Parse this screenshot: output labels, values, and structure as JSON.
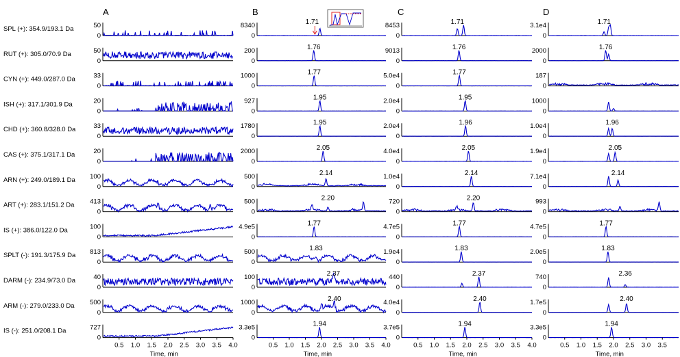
{
  "panels": [
    "A",
    "B",
    "C",
    "D"
  ],
  "xlabel": "Time, min",
  "x_range": [
    0,
    4
  ],
  "x_ticks": [
    "0.5",
    "1.0",
    "1.5",
    "2.0",
    "2.5",
    "3.0",
    "3.5",
    "4.0"
  ],
  "line_color": "#0000cc",
  "analytes": [
    {
      "label": "SPL (+): 354.9/193.1 Da",
      "ymax": [
        "50",
        "8340",
        "8453",
        "3.1e4"
      ],
      "peaks": [
        [],
        [
          {
            "rt": 1.95,
            "h": 0.55
          }
        ],
        [
          {
            "rt": 1.71,
            "h": 0.55
          },
          {
            "rt": 1.9,
            "h": 0.8
          }
        ],
        [
          {
            "rt": 1.71,
            "h": 0.3
          },
          {
            "rt": 1.85,
            "h": 0.6
          },
          {
            "rt": 1.9,
            "h": 0.8
          }
        ]
      ],
      "labels": [
        [],
        [
          {
            "rt": 1.71,
            "text": "1.71",
            "arrow": true
          }
        ],
        [
          {
            "rt": 1.71,
            "text": "1.71"
          }
        ],
        [
          {
            "rt": 1.71,
            "text": "1.71"
          }
        ]
      ],
      "noise": [
        "spike",
        "flat",
        "flat",
        "flat"
      ]
    },
    {
      "label": "RUT (+): 305.0/70.9 Da",
      "ymax": [
        "50",
        "200",
        "9013",
        "2000"
      ],
      "peaks": [
        [],
        [
          {
            "rt": 1.76,
            "h": 0.8
          }
        ],
        [
          {
            "rt": 1.76,
            "h": 0.8
          }
        ],
        [
          {
            "rt": 1.76,
            "h": 0.8
          },
          {
            "rt": 1.85,
            "h": 0.5
          }
        ]
      ],
      "labels": [
        [],
        [
          {
            "rt": 1.76,
            "text": "1.76"
          }
        ],
        [
          {
            "rt": 1.76,
            "text": "1.76"
          }
        ],
        [
          {
            "rt": 1.76,
            "text": "1.76"
          }
        ]
      ],
      "noise": [
        "dense",
        "flat",
        "flat",
        "flat"
      ]
    },
    {
      "label": "CYN (+): 449.0/287.0 Da",
      "ymax": [
        "33",
        "1000",
        "5.0e4",
        "187"
      ],
      "peaks": [
        [],
        [
          {
            "rt": 1.77,
            "h": 0.8
          }
        ],
        [
          {
            "rt": 1.77,
            "h": 0.8
          }
        ],
        []
      ],
      "labels": [
        [],
        [
          {
            "rt": 1.77,
            "text": "1.77"
          }
        ],
        [
          {
            "rt": 1.77,
            "text": "1.77"
          }
        ],
        []
      ],
      "noise": [
        "spike",
        "flat",
        "flat",
        "broad"
      ]
    },
    {
      "label": "ISH (+): 317.1/301.9 Da",
      "ymax": [
        "20",
        "927",
        "2.0e4",
        "1000"
      ],
      "peaks": [
        [],
        [
          {
            "rt": 1.95,
            "h": 0.8
          }
        ],
        [
          {
            "rt": 1.95,
            "h": 0.8
          }
        ],
        [
          {
            "rt": 1.85,
            "h": 0.7
          },
          {
            "rt": 2.0,
            "h": 0.2
          }
        ]
      ],
      "labels": [
        [],
        [
          {
            "rt": 1.95,
            "text": "1.95"
          }
        ],
        [
          {
            "rt": 1.95,
            "text": "1.95"
          }
        ],
        []
      ],
      "noise": [
        "late",
        "flat",
        "flat",
        "flat"
      ]
    },
    {
      "label": "CHD (+): 360.8/328.0 Da",
      "ymax": [
        "33",
        "1780",
        "2.0e4",
        "1.0e4"
      ],
      "peaks": [
        [],
        [
          {
            "rt": 1.95,
            "h": 0.8
          }
        ],
        [
          {
            "rt": 1.96,
            "h": 0.8
          }
        ],
        [
          {
            "rt": 1.85,
            "h": 0.6
          },
          {
            "rt": 1.96,
            "h": 0.6
          }
        ]
      ],
      "labels": [
        [],
        [
          {
            "rt": 1.95,
            "text": "1.95"
          }
        ],
        [
          {
            "rt": 1.96,
            "text": "1.96"
          }
        ],
        [
          {
            "rt": 1.96,
            "text": "1.96"
          }
        ]
      ],
      "noise": [
        "dense",
        "flat",
        "flat",
        "flat"
      ]
    },
    {
      "label": "CAS (+): 375.1/317.1 Da",
      "ymax": [
        "20",
        "2000",
        "4.0e4",
        "1.9e4"
      ],
      "peaks": [
        [],
        [
          {
            "rt": 2.05,
            "h": 0.8
          }
        ],
        [
          {
            "rt": 2.05,
            "h": 0.8
          }
        ],
        [
          {
            "rt": 1.85,
            "h": 0.6
          },
          {
            "rt": 2.05,
            "h": 0.7
          }
        ]
      ],
      "labels": [
        [],
        [
          {
            "rt": 2.05,
            "text": "2.05"
          }
        ],
        [
          {
            "rt": 2.05,
            "text": "2.05"
          }
        ],
        [
          {
            "rt": 2.05,
            "text": "2.05"
          }
        ]
      ],
      "noise": [
        "late",
        "flat",
        "flat",
        "flat"
      ]
    },
    {
      "label": "ARN (+): 249.0/189.1 Da",
      "ymax": [
        "100",
        "500",
        "1.0e4",
        "7.1e4"
      ],
      "peaks": [
        [],
        [
          {
            "rt": 2.14,
            "h": 0.55
          }
        ],
        [
          {
            "rt": 2.14,
            "h": 0.8
          }
        ],
        [
          {
            "rt": 1.85,
            "h": 0.8
          },
          {
            "rt": 2.14,
            "h": 0.5
          }
        ]
      ],
      "labels": [
        [],
        [
          {
            "rt": 2.14,
            "text": "2.14"
          }
        ],
        [
          {
            "rt": 2.14,
            "text": "2.14"
          }
        ],
        [
          {
            "rt": 2.14,
            "text": "2.14"
          }
        ]
      ],
      "noise": [
        "wavy",
        "broad",
        "flat",
        "flat"
      ]
    },
    {
      "label": "ART (+): 283.1/151.2 Da",
      "ymax": [
        "413",
        "500",
        "720",
        "993"
      ],
      "peaks": [
        [
          {
            "rt": 1.7,
            "h": 0.5
          },
          {
            "rt": 3.3,
            "h": 0.5
          }
        ],
        [
          {
            "rt": 1.7,
            "h": 0.45
          },
          {
            "rt": 2.2,
            "h": 0.3
          },
          {
            "rt": 3.3,
            "h": 0.65
          }
        ],
        [
          {
            "rt": 1.7,
            "h": 0.3
          },
          {
            "rt": 2.2,
            "h": 0.65
          }
        ],
        [
          {
            "rt": 2.2,
            "h": 0.35
          },
          {
            "rt": 3.4,
            "h": 0.7
          }
        ]
      ],
      "labels": [
        [],
        [
          {
            "rt": 2.2,
            "text": "2.20"
          }
        ],
        [
          {
            "rt": 2.2,
            "text": "2.20"
          }
        ],
        []
      ],
      "noise": [
        "wavy",
        "broad",
        "broad",
        "broad"
      ]
    },
    {
      "label": "IS (+): 386.0/122.0 Da",
      "ymax": [
        "100",
        "4.9e5",
        "4.7e5",
        "4.7e5"
      ],
      "peaks": [
        [],
        [
          {
            "rt": 1.77,
            "h": 0.8
          }
        ],
        [
          {
            "rt": 1.77,
            "h": 0.8
          }
        ],
        [
          {
            "rt": 1.77,
            "h": 0.8
          }
        ]
      ],
      "labels": [
        [],
        [
          {
            "rt": 1.77,
            "text": "1.77"
          }
        ],
        [
          {
            "rt": 1.77,
            "text": "1.77"
          }
        ],
        [
          {
            "rt": 1.77,
            "text": "1.77"
          }
        ]
      ],
      "noise": [
        "rising",
        "flat",
        "flat",
        "flat"
      ]
    },
    {
      "label": "SPLT (-): 191.3/175.9 Da",
      "ymax": [
        "813",
        "500",
        "1.9e4",
        "2.0e5"
      ],
      "peaks": [
        [],
        [
          {
            "rt": 1.83,
            "h": 0.35
          }
        ],
        [
          {
            "rt": 1.83,
            "h": 0.8
          }
        ],
        [
          {
            "rt": 1.83,
            "h": 0.8
          }
        ]
      ],
      "labels": [
        [],
        [
          {
            "rt": 1.83,
            "text": "1.83"
          }
        ],
        [
          {
            "rt": 1.83,
            "text": "1.83"
          }
        ],
        [
          {
            "rt": 1.83,
            "text": "1.83"
          }
        ]
      ],
      "noise": [
        "wavy",
        "wavy",
        "flat",
        "flat"
      ]
    },
    {
      "label": "DARM (-): 234.9/73.0 Da",
      "ymax": [
        "40",
        "100",
        "440",
        "740"
      ],
      "peaks": [
        [],
        [
          {
            "rt": 2.37,
            "h": 0.75
          }
        ],
        [
          {
            "rt": 1.85,
            "h": 0.3
          },
          {
            "rt": 2.37,
            "h": 0.8
          }
        ],
        [
          {
            "rt": 1.85,
            "h": 0.75
          },
          {
            "rt": 2.36,
            "h": 0.2
          }
        ]
      ],
      "labels": [
        [],
        [
          {
            "rt": 2.37,
            "text": "2.37"
          }
        ],
        [
          {
            "rt": 2.37,
            "text": "2.37"
          }
        ],
        [
          {
            "rt": 2.36,
            "text": "2.36"
          }
        ]
      ],
      "noise": [
        "dense",
        "dense",
        "flat",
        "flat"
      ]
    },
    {
      "label": "ARM (-): 279.0/233.0 Da",
      "ymax": [
        "500",
        "1000",
        "4.0e4",
        "1.7e5"
      ],
      "peaks": [
        [],
        [
          {
            "rt": 2.0,
            "h": 0.45
          },
          {
            "rt": 2.4,
            "h": 0.5
          }
        ],
        [
          {
            "rt": 2.4,
            "h": 0.8
          }
        ],
        [
          {
            "rt": 1.85,
            "h": 0.6
          },
          {
            "rt": 2.4,
            "h": 0.7
          }
        ]
      ],
      "labels": [
        [],
        [
          {
            "rt": 2.4,
            "text": "2.40"
          }
        ],
        [
          {
            "rt": 2.4,
            "text": "2.40"
          }
        ],
        [
          {
            "rt": 2.4,
            "text": "2.40"
          }
        ]
      ],
      "noise": [
        "wavy",
        "wavy",
        "flat",
        "flat"
      ]
    },
    {
      "label": "IS (-): 251.0/208.1 Da",
      "ymax": [
        "727",
        "3.3e5",
        "3.7e5",
        "3.3e5"
      ],
      "peaks": [
        [],
        [
          {
            "rt": 1.94,
            "h": 0.8
          }
        ],
        [
          {
            "rt": 1.94,
            "h": 0.8
          }
        ],
        [
          {
            "rt": 1.94,
            "h": 0.8
          }
        ]
      ],
      "labels": [
        [],
        [
          {
            "rt": 1.94,
            "text": "1.94"
          }
        ],
        [
          {
            "rt": 1.94,
            "text": "1.94"
          }
        ],
        [
          {
            "rt": 1.94,
            "text": "1.94"
          }
        ]
      ],
      "noise": [
        "rising",
        "flat",
        "flat",
        "flat"
      ]
    }
  ],
  "chart_data": {
    "type": "line",
    "xlabel": "Time, min",
    "xlim": [
      0,
      4
    ],
    "panels": [
      "A",
      "B",
      "C",
      "D"
    ],
    "series": [
      {
        "name": "SPL (+): 354.9/193.1 Da",
        "retention_times": [
          "",
          "1.71",
          "1.71",
          "1.71"
        ]
      },
      {
        "name": "RUT (+): 305.0/70.9 Da",
        "retention_times": [
          "",
          "1.76",
          "1.76",
          "1.76"
        ]
      },
      {
        "name": "CYN (+): 449.0/287.0 Da",
        "retention_times": [
          "",
          "1.77",
          "1.77",
          ""
        ]
      },
      {
        "name": "ISH (+): 317.1/301.9 Da",
        "retention_times": [
          "",
          "1.95",
          "1.95",
          ""
        ]
      },
      {
        "name": "CHD (+): 360.8/328.0 Da",
        "retention_times": [
          "",
          "1.95",
          "1.96",
          "1.96"
        ]
      },
      {
        "name": "CAS (+): 375.1/317.1 Da",
        "retention_times": [
          "",
          "2.05",
          "2.05",
          "2.05"
        ]
      },
      {
        "name": "ARN (+): 249.0/189.1 Da",
        "retention_times": [
          "",
          "2.14",
          "2.14",
          "2.14"
        ]
      },
      {
        "name": "ART (+): 283.1/151.2 Da",
        "retention_times": [
          "",
          "2.20",
          "2.20",
          ""
        ]
      },
      {
        "name": "IS (+): 386.0/122.0 Da",
        "retention_times": [
          "",
          "1.77",
          "1.77",
          "1.77"
        ]
      },
      {
        "name": "SPLT (-): 191.3/175.9 Da",
        "retention_times": [
          "",
          "1.83",
          "1.83",
          "1.83"
        ]
      },
      {
        "name": "DARM (-): 234.9/73.0 Da",
        "retention_times": [
          "",
          "2.37",
          "2.37",
          "2.36"
        ]
      },
      {
        "name": "ARM (-): 279.0/233.0 Da",
        "retention_times": [
          "",
          "2.40",
          "2.40",
          "2.40"
        ]
      },
      {
        "name": "IS (-): 251.0/208.1 Da",
        "retention_times": [
          "",
          "1.94",
          "1.94",
          "1.94"
        ]
      }
    ]
  }
}
